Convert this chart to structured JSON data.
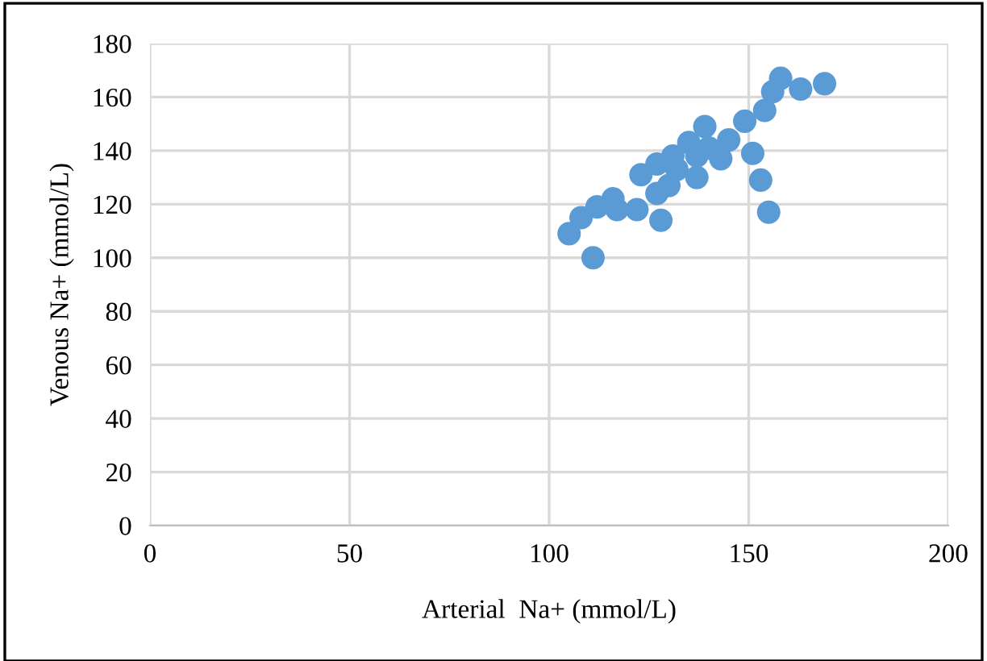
{
  "chart_data": {
    "type": "scatter",
    "xlabel": "Arterial  Na+ (mmol/L)",
    "ylabel": "Venous Na+ (mmol/L)",
    "xlim": [
      0,
      200
    ],
    "xticks": [
      0,
      50,
      100,
      150,
      200
    ],
    "ylim": [
      0,
      180
    ],
    "yticks": [
      0,
      20,
      40,
      60,
      80,
      100,
      120,
      140,
      160,
      180
    ],
    "grid": true,
    "marker": "circle",
    "series": [
      {
        "color": "#5b9bd5",
        "x": [
          105,
          111,
          128,
          153,
          155,
          151,
          169,
          158,
          108,
          112,
          116,
          117,
          122,
          123,
          127,
          130,
          137,
          143,
          127,
          131,
          135,
          139,
          149,
          156,
          163,
          154,
          132,
          137,
          140,
          145
        ],
        "values": [
          109,
          100,
          114,
          129,
          117,
          139,
          165,
          167,
          115,
          119,
          122,
          118,
          118,
          131,
          124,
          127,
          130,
          137,
          135,
          138,
          143,
          149,
          151,
          162,
          163,
          155,
          133,
          138,
          141,
          144
        ]
      }
    ]
  }
}
